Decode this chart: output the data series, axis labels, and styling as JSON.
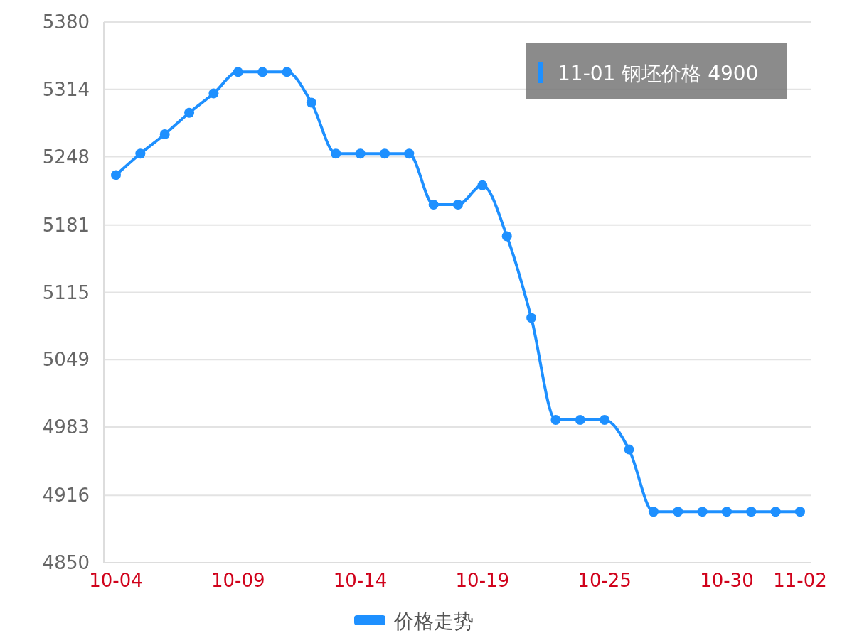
{
  "chart_data": {
    "type": "line",
    "categories": [
      "10-04",
      null,
      null,
      null,
      null,
      "10-09",
      null,
      null,
      null,
      null,
      "10-14",
      null,
      null,
      null,
      null,
      "10-19",
      null,
      null,
      null,
      null,
      "10-25",
      null,
      null,
      null,
      null,
      "10-30",
      null,
      null,
      "11-02"
    ],
    "series": [
      {
        "name": "价格走势",
        "color": "#1e90ff",
        "values": [
          5230,
          5251,
          5270,
          5291,
          5310,
          5331,
          5331,
          5331,
          5301,
          5251,
          5251,
          5251,
          5251,
          5201,
          5201,
          5220,
          5170,
          5090,
          4990,
          4990,
          4990,
          4961,
          4900,
          4900,
          4900,
          4900,
          4900,
          4900,
          4900
        ]
      }
    ],
    "ylim": [
      4850,
      5380
    ],
    "yticks": [
      4850,
      4916,
      4983,
      5049,
      5115,
      5181,
      5248,
      5314,
      5380
    ],
    "grid": "y",
    "legend": "bottom",
    "marker": "circle",
    "annotations": [
      "11-01 钢坯价格 4900"
    ]
  }
}
